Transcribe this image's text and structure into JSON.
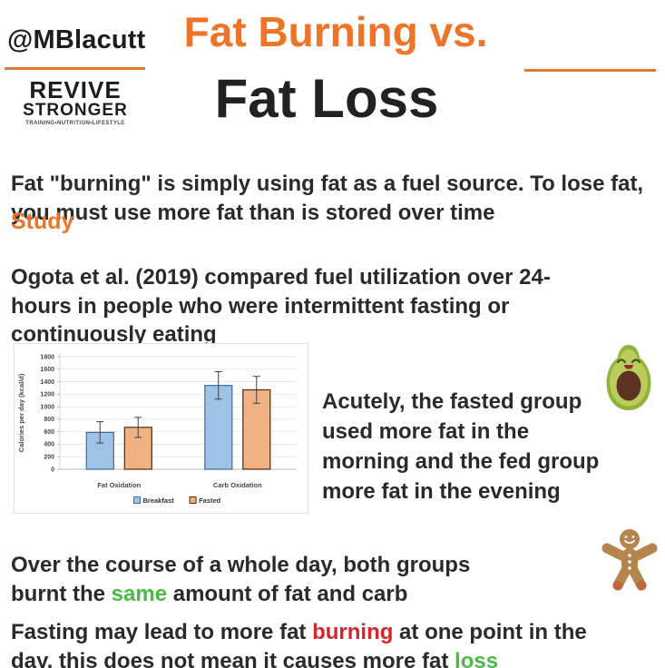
{
  "colors": {
    "orange": "#EE7428",
    "underline": "#DD7B38",
    "dark": "#2A2A2A",
    "green": "#4CB944",
    "red": "#D6252B"
  },
  "header": {
    "handle": "@MBlacutt",
    "logo": {
      "line1": "REVIVE",
      "line2": "STRONGER",
      "tagline": "TRAINING•NUTRITION•LIFESTYLE"
    },
    "title_line1": "Fat Burning vs.",
    "title_line2": "Fat Loss"
  },
  "body": {
    "intro": "Fat \"burning\" is simply using fat as a fuel source. To lose fat, you must use more fat than is stored over time",
    "study_label": "Study",
    "study_desc": "Ogota et al. (2019) compared fuel utilization over 24-hours in people who were intermittent fasting or continuously eating",
    "chart_note": "Acutely, the fasted group used more fat in the morning and the fed group more fat in the evening",
    "finding_day": {
      "segments": [
        {
          "text": "Over the course of a whole day, both groups burnt the "
        },
        {
          "text": "same",
          "color": "green"
        },
        {
          "text": " amount of fat and carb"
        }
      ]
    },
    "finding_conclusion": {
      "segments": [
        {
          "text": "Fasting may lead to more fat "
        },
        {
          "text": "burning",
          "color": "red"
        },
        {
          "text": " at one point in the day, this does not mean it causes more fat "
        },
        {
          "text": "loss",
          "color": "green"
        }
      ]
    }
  },
  "icons": {
    "avocado": "avocado-character",
    "gingerbread": "gingerbread-man"
  },
  "chart_data": {
    "type": "bar",
    "categories": [
      "Fat Oxidation",
      "Carb Oxidation"
    ],
    "series": [
      {
        "name": "Breakfast",
        "values": [
          590,
          1340
        ],
        "error": [
          170,
          220
        ],
        "fill": "#9DC3E6",
        "border": "#3B6BA5"
      },
      {
        "name": "Fasted",
        "values": [
          670,
          1270
        ],
        "error": [
          160,
          215
        ],
        "fill": "#F2B183",
        "border": "#4A2E12"
      }
    ],
    "title": "",
    "xlabel": "",
    "ylabel": "Calories per day (kcal/d)",
    "ylim": [
      0,
      1800
    ],
    "ytick_step": 200,
    "grid": true,
    "legend_position": "bottom"
  }
}
